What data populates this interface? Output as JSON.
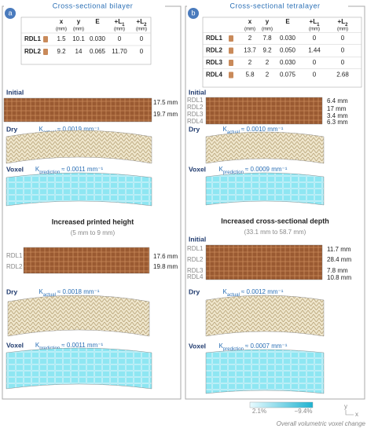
{
  "panels": [
    {
      "label": "a",
      "title": "Cross-sectional bilayer",
      "table": {
        "headers": [
          {
            "symbol": "x",
            "unit": "(mm)"
          },
          {
            "symbol": "y",
            "unit": "(mm)"
          },
          {
            "symbol": "E"
          },
          {
            "symbol": "+L",
            "sub": "1",
            "unit": "(mm)"
          },
          {
            "symbol": "+L",
            "sub": "2",
            "unit": "(mm)"
          }
        ],
        "rows": [
          {
            "name": "RDL1",
            "cells": [
              "1.5",
              "10.1",
              "0.030",
              "0",
              "0"
            ]
          },
          {
            "name": "RDL2",
            "cells": [
              "9.2",
              "14",
              "0.065",
              "11.70",
              "0"
            ]
          }
        ]
      },
      "initial": {
        "heading": "Initial",
        "measurements": [
          "17.5 mm",
          "19.7 mm"
        ]
      },
      "dry": {
        "heading": "Dry",
        "k": {
          "symbol": "K",
          "sub": "actual",
          "text": "≈ 0.0019 mm⁻¹"
        }
      },
      "voxel": {
        "heading": "Voxel",
        "k": {
          "symbol": "K",
          "sub": "prediction",
          "text": "≈ 0.0011 mm⁻¹"
        }
      },
      "variant": {
        "title": "Increased printed height",
        "subtitle": "(5 mm to 9 mm)",
        "initial": {
          "layers": [
            "RDL1",
            "RDL2"
          ],
          "measurements": [
            "17.6 mm",
            "19.8 mm"
          ]
        },
        "dry": {
          "heading": "Dry",
          "k": {
            "symbol": "K",
            "sub": "actual",
            "text": "≈ 0.0018 mm⁻¹"
          }
        },
        "voxel": {
          "heading": "Voxel",
          "k": {
            "symbol": "K",
            "sub": "prediction",
            "text": "≈ 0.0011 mm⁻¹"
          }
        }
      }
    },
    {
      "label": "b",
      "title": "Cross-sectional tetralayer",
      "table": {
        "headers": [
          {
            "symbol": "x",
            "unit": "(mm)"
          },
          {
            "symbol": "y",
            "unit": "(mm)"
          },
          {
            "symbol": "E"
          },
          {
            "symbol": "+L",
            "sub": "1",
            "unit": "(mm)"
          },
          {
            "symbol": "+L",
            "sub": "2",
            "unit": "(mm)"
          }
        ],
        "rows": [
          {
            "name": "RDL1",
            "cells": [
              "2",
              "7.8",
              "0.030",
              "0",
              "0"
            ]
          },
          {
            "name": "RDL2",
            "cells": [
              "13.7",
              "9.2",
              "0.050",
              "1.44",
              "0"
            ]
          },
          {
            "name": "RDL3",
            "cells": [
              "2",
              "2",
              "0.030",
              "0",
              "0"
            ]
          },
          {
            "name": "RDL4",
            "cells": [
              "5.8",
              "2",
              "0.075",
              "0",
              "2.68"
            ]
          }
        ]
      },
      "initial": {
        "heading": "Initial",
        "layers": [
          "RDL1",
          "RDL2",
          "RDL3",
          "RDL4"
        ],
        "measurements": [
          "6.4 mm",
          "17 mm",
          "3.4 mm",
          "6.3 mm"
        ]
      },
      "dry": {
        "heading": "Dry",
        "k": {
          "symbol": "K",
          "sub": "actual",
          "text": "≈ 0.0010 mm⁻¹"
        }
      },
      "voxel": {
        "heading": "Voxel",
        "k": {
          "symbol": "K",
          "sub": "prediction",
          "text": "≈ 0.0009 mm⁻¹"
        }
      },
      "variant": {
        "title": "Increased cross-sectional depth",
        "subtitle": "(33.1 mm to 58.7 mm)",
        "initial": {
          "heading": "Initial",
          "layers": [
            "RDL1",
            "RDL2",
            "RDL3",
            "RDL4"
          ],
          "measurements": [
            "11.7 mm",
            "28.4 mm",
            "7.8 mm",
            "10.8 mm"
          ]
        },
        "dry": {
          "heading": "Dry",
          "k": {
            "symbol": "K",
            "sub": "actual",
            "text": "≈ 0.0012 mm⁻¹"
          }
        },
        "voxel": {
          "heading": "Voxel",
          "k": {
            "symbol": "K",
            "sub": "prediction",
            "text": "≈ 0.0007 mm⁻¹"
          }
        }
      }
    }
  ],
  "legend": {
    "max": "2.1%",
    "min": "−9.4%",
    "caption": "Overall volumetric voxel change",
    "axes": [
      "y",
      "x"
    ]
  }
}
